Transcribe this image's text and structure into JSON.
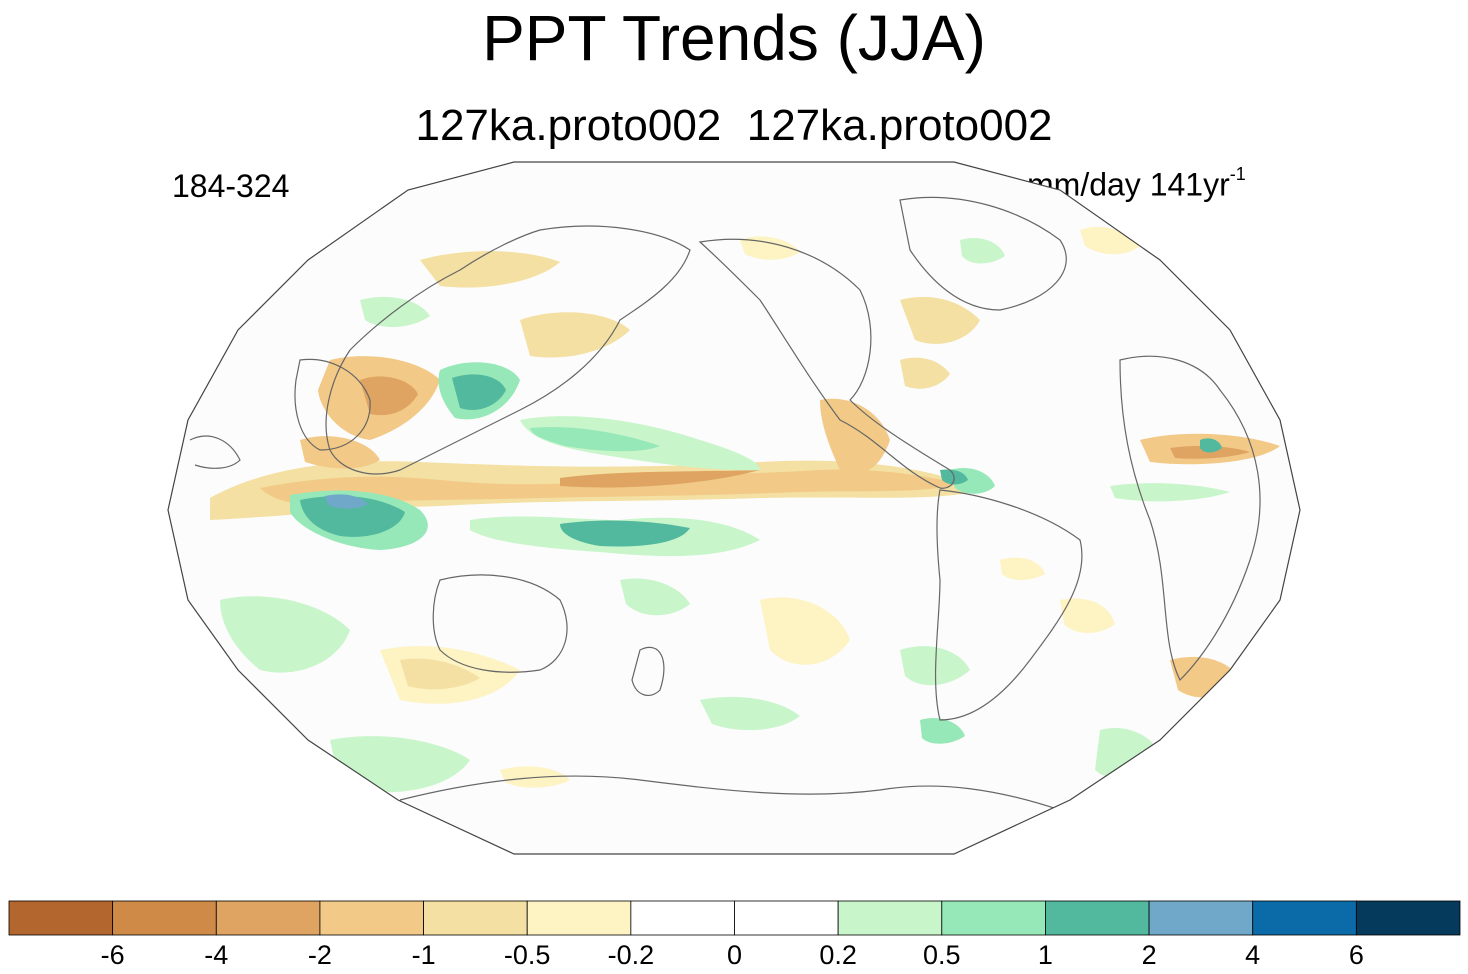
{
  "title": "PPT Trends (JJA)",
  "subtitle": {
    "left": "127ka.proto002",
    "right": "127ka.proto002"
  },
  "left_label": "184-324",
  "units": {
    "base": "mm/day 141yr",
    "exponent": "-1"
  },
  "map": {
    "projection": "robinson-like",
    "variable": "precipitation trend",
    "season": "JJA"
  },
  "colorbar": {
    "colors": [
      "#b3672f",
      "#cf8a48",
      "#dfa462",
      "#f2c987",
      "#f3e0a2",
      "#fdf3c3",
      "#ffffff",
      "#ffffff",
      "#c9f5cb",
      "#97e8b8",
      "#52b99e",
      "#6fa8c8",
      "#0b6aa8",
      "#063a5c"
    ],
    "labels": [
      "-6",
      "-4",
      "-2",
      "-1",
      "-0.5",
      "-0.2",
      "0",
      "0.2",
      "0.5",
      "1",
      "2",
      "4",
      "6"
    ]
  }
}
